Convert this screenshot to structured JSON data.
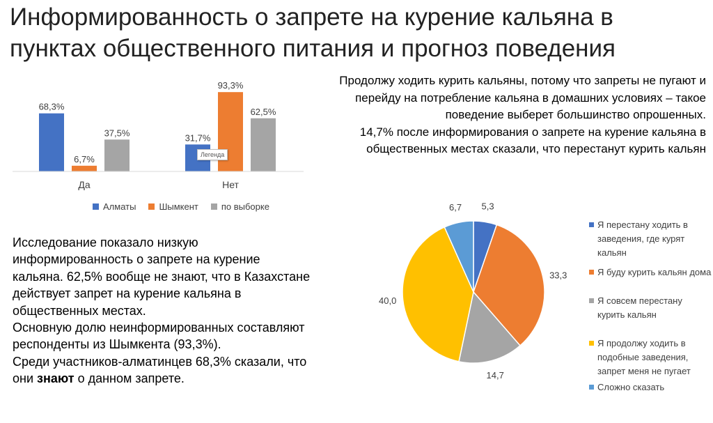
{
  "title": {
    "line1": "Информированность о запрете на курение кальяна в",
    "line2": "пунктах общественного питания и прогноз поведения"
  },
  "bar_tooltip": "Легенда",
  "left_text": {
    "p1": "Исследование показало низкую информированность о запрете на курение кальяна. 62,5% вообще не знают, что в Казахстане действует запрет на курение кальяна в общественных местах.",
    "p2": "Основную долю неинформированных составляют респонденты из Шымкента (93,3%).",
    "p3_before": "Среди участников-алматинцев 68,3% сказали, что они ",
    "p3_bold": "знают",
    "p3_after": " о данном запрете."
  },
  "right_text": {
    "p1": "Продолжу ходить курить кальяны, потому что запреты не пугают и перейду на потребление кальяна в домашних условиях – такое поведение выберет большинство опрошенных.",
    "p2": "14,7% после информирования о запрете на курение кальяна в общественных местах сказали, что перестанут курить кальян"
  },
  "colors": {
    "almaty": "#4472C4",
    "shymkent": "#ED7D31",
    "overall": "#A5A5A5",
    "stop_going": "#4472C4",
    "smoke_home": "#ED7D31",
    "quit": "#A5A5A5",
    "keep_going": "#FFC000",
    "hard_to_say": "#5B9BD5"
  },
  "chart_data": [
    {
      "type": "bar",
      "categories": [
        "Да",
        "Нет"
      ],
      "series": [
        {
          "name": "Алматы",
          "color_key": "almaty",
          "values": [
            68.3,
            31.7
          ],
          "labels": [
            "68,3%",
            "31,7%"
          ]
        },
        {
          "name": "Шымкент",
          "color_key": "shymkent",
          "values": [
            6.7,
            93.3
          ],
          "labels": [
            "6,7%",
            "93,3%"
          ]
        },
        {
          "name": "по выборке",
          "color_key": "overall",
          "values": [
            37.5,
            62.5
          ],
          "labels": [
            "37,5%",
            "62,5%"
          ]
        }
      ],
      "ylim": [
        0,
        100
      ],
      "grid": false,
      "legend": "bottom"
    },
    {
      "type": "pie",
      "slices": [
        {
          "label": "Я перестану ходить в заведения, где курят кальян",
          "value": 5.3,
          "display": "5,3",
          "color_key": "stop_going"
        },
        {
          "label": "Я буду курить кальян дома",
          "value": 33.3,
          "display": "33,3",
          "color_key": "smoke_home"
        },
        {
          "label": "Я совсем перестану курить кальян",
          "value": 14.7,
          "display": "14,7",
          "color_key": "quit"
        },
        {
          "label": "Я продолжу ходить в подобные заведения, запрет меня не пугает",
          "value": 40.0,
          "display": "40,0",
          "color_key": "keep_going"
        },
        {
          "label": "Сложно сказать",
          "value": 6.7,
          "display": "6,7",
          "color_key": "hard_to_say"
        }
      ],
      "start": "12 o'clock",
      "direction": "clockwise",
      "legend": "right"
    }
  ]
}
